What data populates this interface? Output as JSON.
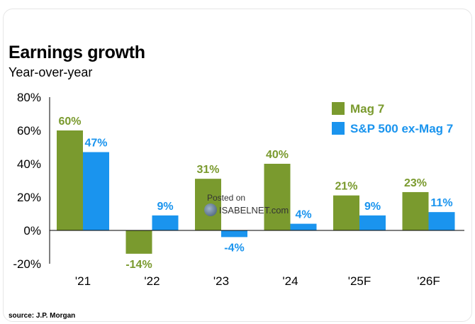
{
  "title": "Earnings growth",
  "subtitle": "Year-over-year",
  "source": "source: J.P. Morgan",
  "watermark": {
    "line1": "Posted on",
    "line2": "ISABELNET.com"
  },
  "colors": {
    "mag7": "#7a9a2e",
    "sp500": "#1a94ee",
    "axis": "#000000"
  },
  "chart_data": {
    "type": "bar",
    "categories": [
      "'21",
      "'22",
      "'23",
      "'24",
      "'25F",
      "'26F"
    ],
    "series": [
      {
        "name": "Mag 7",
        "values": [
          60,
          -14,
          31,
          40,
          21,
          23
        ],
        "labels": [
          "60%",
          "-14%",
          "31%",
          "40%",
          "21%",
          "23%"
        ]
      },
      {
        "name": "S&P 500 ex-Mag 7",
        "values": [
          47,
          9,
          -4,
          4,
          9,
          11
        ],
        "labels": [
          "47%",
          "9%",
          "-4%",
          "4%",
          "9%",
          "11%"
        ]
      }
    ],
    "yticks": [
      "80%",
      "60%",
      "40%",
      "20%",
      "0%",
      "-20%"
    ],
    "ylim": [
      -20,
      80
    ],
    "legend": "top-right",
    "grid": false
  }
}
